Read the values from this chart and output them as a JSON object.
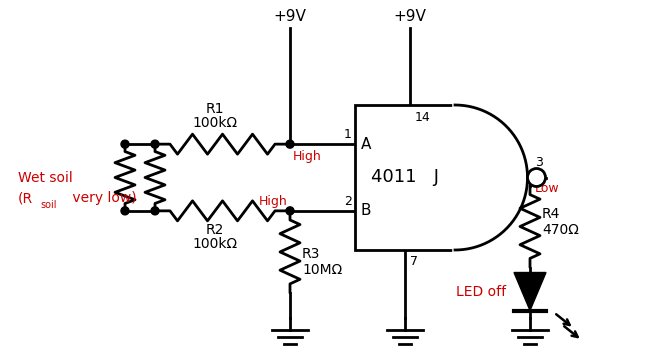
{
  "bg_color": "#ffffff",
  "black": "#000000",
  "red": "#cc0000",
  "lw": 2.0,
  "labels": {
    "R1": "R1",
    "R1_val": "100kΩ",
    "R2": "R2",
    "R2_val": "100kΩ",
    "R3": "R3",
    "R3_val": "10MΩ",
    "R4": "R4",
    "R4_val": "470Ω",
    "vcc1": "+9V",
    "vcc2": "+9V",
    "pin1": "1",
    "pin2": "2",
    "pin3": "3",
    "pin7": "7",
    "pin14": "14",
    "pinA": "A",
    "pinB": "B",
    "chip": "4011   J",
    "high1": "High",
    "high2": "High",
    "low": "Low",
    "led_off": "LED off",
    "wet1": "Wet soil",
    "wet2": "(R",
    "wet2sub": "soil",
    "wet2end": " very low)"
  }
}
